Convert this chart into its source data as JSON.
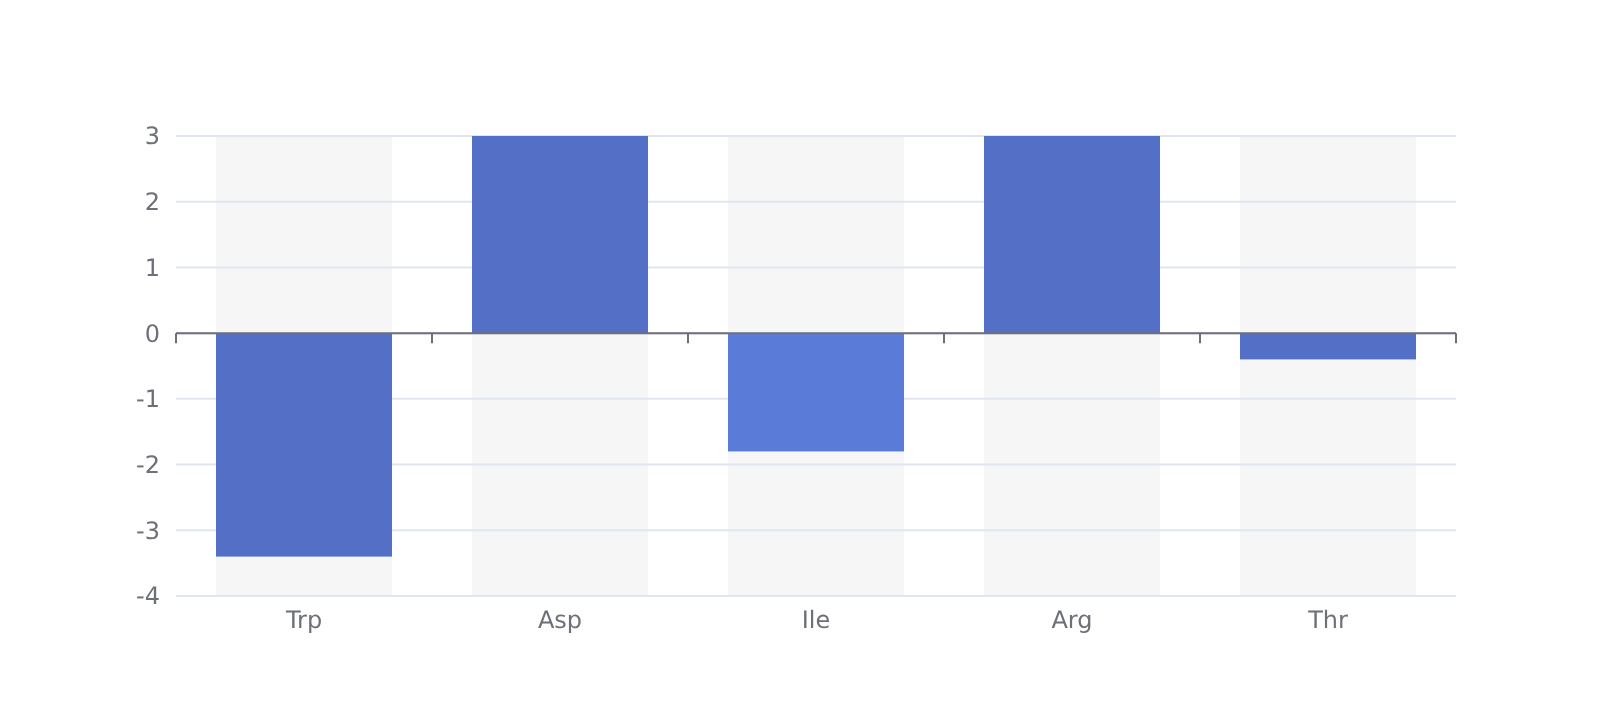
{
  "chart_data": {
    "type": "bar",
    "categories": [
      "Trp",
      "Asp",
      "Ile",
      "Arg",
      "Thr"
    ],
    "values": [
      -3.4,
      3,
      -1.8,
      3,
      -0.4
    ],
    "colors": [
      "#5470c6",
      "#5470c6",
      "#5b7bd9",
      "#5470c6",
      "#5470c6"
    ],
    "ylim": [
      -4,
      3
    ],
    "yticks": [
      -4,
      -3,
      -2,
      -1,
      0,
      1,
      2,
      3
    ],
    "grid": "y"
  }
}
